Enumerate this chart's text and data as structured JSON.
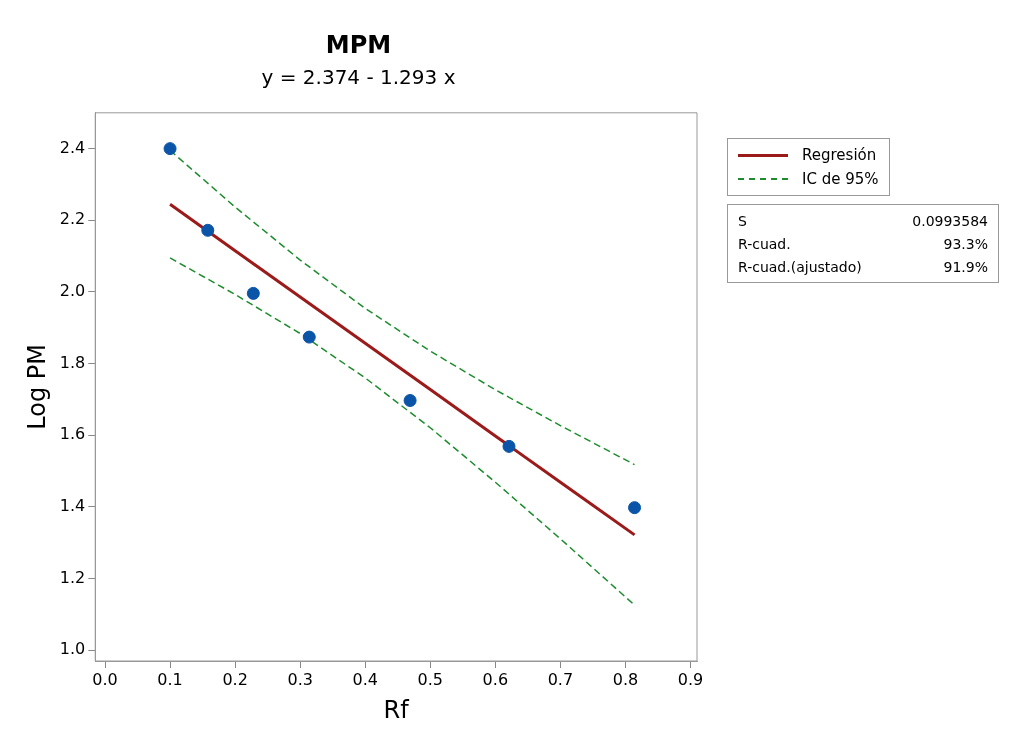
{
  "chart_data": {
    "type": "scatter",
    "title": "MPM",
    "subtitle": "y = 2.374 - 1.293 x",
    "xlabel": "Rf",
    "ylabel": "Log PM",
    "series": [
      {
        "color": "#0a55a8",
        "marker": "circle",
        "x": [
          0.1,
          0.158,
          0.228,
          0.314,
          0.469,
          0.621,
          0.814
        ],
        "values": [
          2.4,
          2.172,
          1.996,
          1.874,
          1.697,
          1.569,
          1.398
        ]
      },
      {
        "type": "line",
        "name": "Regresión",
        "color": "#9b1b1b",
        "marker": "none",
        "line_style": "solid",
        "x": [
          0.1,
          0.2,
          0.3,
          0.4,
          0.5,
          0.6,
          0.7,
          0.814
        ],
        "values": [
          2.245,
          2.115,
          1.986,
          1.857,
          1.728,
          1.598,
          1.469,
          1.322
        ]
      },
      {
        "type": "line",
        "name": "IC de 95%",
        "color": "#1e8c2e",
        "marker": "none",
        "line_style": "dashed",
        "x": [
          0.1,
          0.2,
          0.3,
          0.4,
          0.5,
          0.6,
          0.7,
          0.814
        ],
        "values": [
          2.395,
          2.237,
          2.089,
          1.954,
          1.835,
          1.727,
          1.627,
          1.518
        ]
      },
      {
        "type": "line",
        "color": "#1e8c2e",
        "marker": "none",
        "line_style": "dashed",
        "x": [
          0.1,
          0.2,
          0.3,
          0.4,
          0.5,
          0.6,
          0.7,
          0.814
        ],
        "values": [
          2.095,
          1.993,
          1.884,
          1.76,
          1.621,
          1.469,
          1.311,
          1.126
        ]
      }
    ],
    "xlim": [
      -0.015,
      0.91
    ],
    "ylim": [
      0.97,
      2.5
    ],
    "xticks": [
      {
        "value": 0,
        "label": "0.0"
      },
      0.1,
      0.2,
      0.3,
      0.4,
      0.5,
      0.6,
      0.7,
      0.8,
      0.9
    ],
    "yticks": [
      {
        "value": 1,
        "label": "1.0"
      },
      1.2,
      1.4,
      1.6,
      1.8,
      {
        "value": 2,
        "label": "2.0"
      },
      2.2,
      2.4
    ],
    "grid": false,
    "legend": "top right",
    "annotations": [
      "S",
      "0.0993584",
      "R-cuad.",
      "93.3%",
      "R-cuad.(ajustado)",
      "91.9%"
    ]
  }
}
